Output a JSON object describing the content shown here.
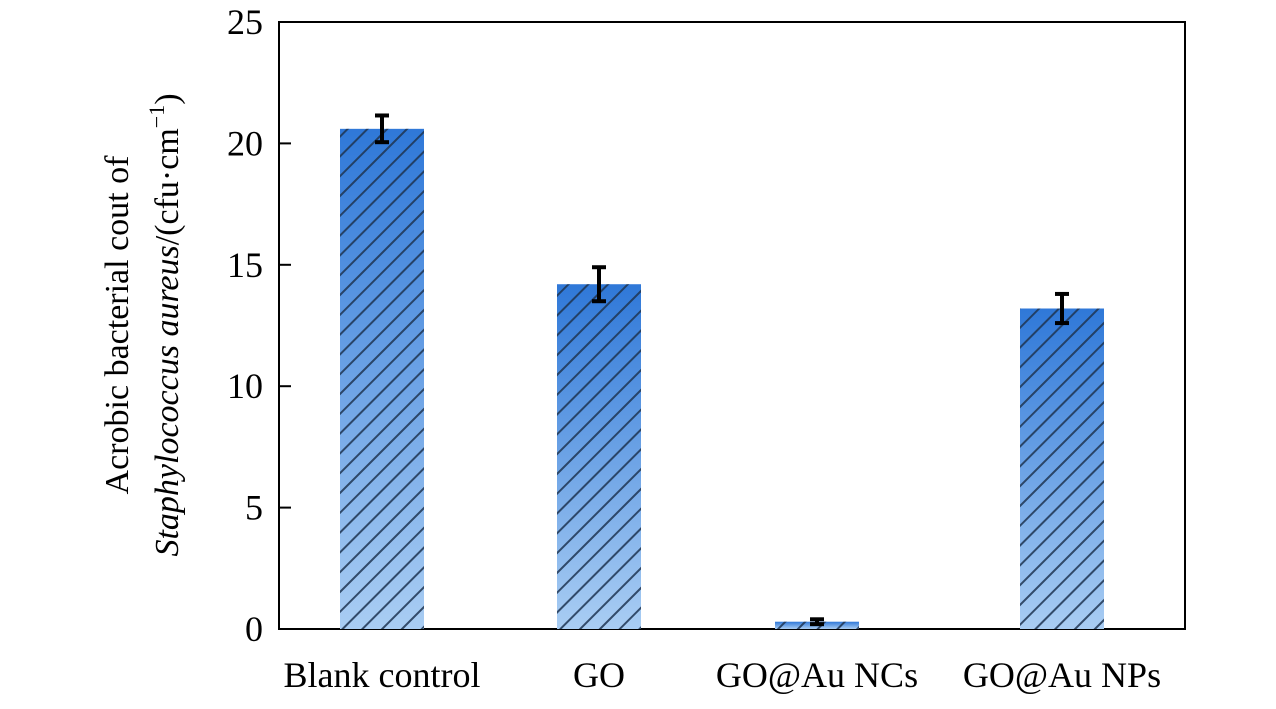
{
  "chart_data": {
    "type": "bar",
    "title": "",
    "xlabel": "",
    "ylabel_line1": "Acrobic bacterial cout of",
    "ylabel_line2_italic": "Staphylococcus aureus",
    "ylabel_line2_rest": "/(cfu·cm",
    "ylabel_line2_sup": "−1",
    "ylabel_line2_end": ")",
    "ylim": [
      0,
      25
    ],
    "yticks": [
      0,
      5,
      10,
      15,
      20,
      25
    ],
    "categories": [
      "Blank control",
      "GO",
      "GO@Au NCs",
      "GO@Au NPs"
    ],
    "values": [
      20.6,
      14.2,
      0.3,
      13.2
    ],
    "errors": [
      0.55,
      0.7,
      0.1,
      0.6
    ],
    "grid": false,
    "bar_fill_top": "#2f78d8",
    "bar_fill_bottom": "#a9cdf3",
    "hatch_color": "#1f3552"
  }
}
